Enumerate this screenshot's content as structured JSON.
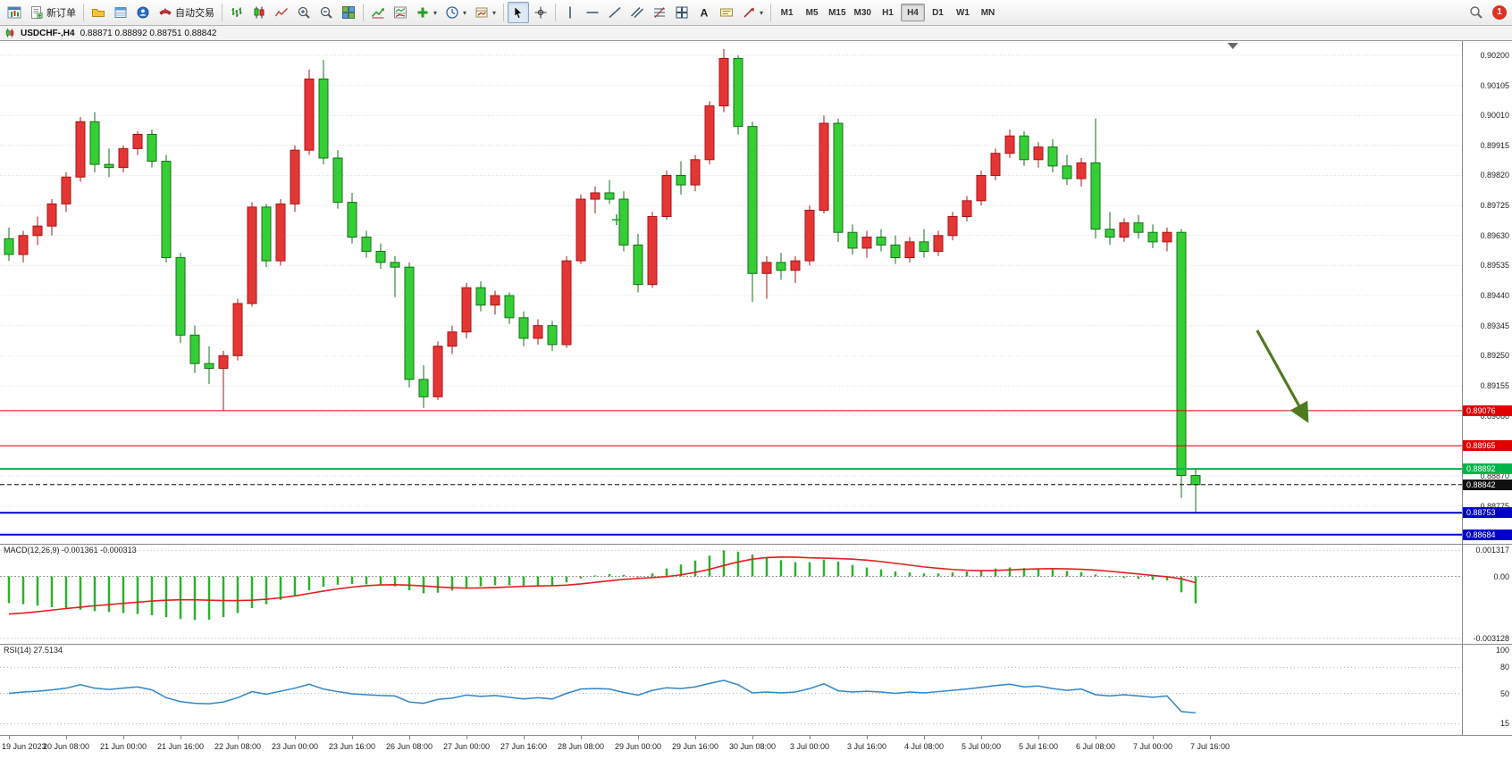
{
  "toolbar": {
    "new_order_label": "新订单",
    "autotrading_label": "自动交易",
    "timeframes": [
      "M1",
      "M5",
      "M15",
      "M30",
      "H1",
      "H4",
      "D1",
      "W1",
      "MN"
    ],
    "active_timeframe": "H4",
    "notification_count": "1",
    "icons": [
      "new-chart-icon",
      "new-order-icon",
      "profiles-icon",
      "market-watch-icon",
      "community-icon",
      "autotrading-icon",
      "bar-chart-icon",
      "candlestick-icon",
      "line-chart-icon",
      "zoom-in-icon",
      "zoom-out-icon",
      "tile-windows-icon",
      "indicators-icon",
      "indicator-window-icon",
      "add-indicator-icon",
      "periods-icon",
      "templates-icon",
      "cursor-icon",
      "crosshair-icon",
      "vertical-line-icon",
      "horizontal-line-icon",
      "trendline-icon",
      "channel-icon",
      "fibonacci-icon",
      "shapes-icon",
      "text-icon",
      "text-label-icon",
      "arrows-icon",
      "search-icon"
    ]
  },
  "chart": {
    "symbol_period": "USDCHF-,H4",
    "ohlc_text": "0.88871 0.88892 0.88751 0.88842"
  },
  "chart_data": {
    "type": "candlestick",
    "symbol": "USDCHF",
    "timeframe": "H4",
    "current_bar": {
      "open": 0.88871,
      "high": 0.88892,
      "low": 0.88751,
      "close": 0.88842
    },
    "colors": {
      "up": "#e53636",
      "up_border": "#a81414",
      "down": "#35cf35",
      "down_border": "#13711a"
    },
    "y_range": {
      "max": 0.90245,
      "min": 0.88655
    },
    "y_axis_labels": [
      "0.90200",
      "0.90105",
      "0.90010",
      "0.89915",
      "0.89820",
      "0.89725",
      "0.89630",
      "0.89535",
      "0.89440",
      "0.89345",
      "0.89250",
      "0.89155",
      "0.89060",
      "0.88965",
      "0.88870",
      "0.88775",
      "0.88684"
    ],
    "x_labels": [
      "19 Jun 2023",
      "20 Jun 08:00",
      "21 Jun 00:00",
      "21 Jun 16:00",
      "22 Jun 08:00",
      "23 Jun 00:00",
      "23 Jun 16:00",
      "26 Jun 08:00",
      "27 Jun 00:00",
      "27 Jun 16:00",
      "28 Jun 08:00",
      "29 Jun 00:00",
      "29 Jun 16:00",
      "30 Jun 08:00",
      "3 Jul 00:00",
      "3 Jul 16:00",
      "4 Jul 08:00",
      "5 Jul 00:00",
      "5 Jul 16:00",
      "6 Jul 08:00",
      "7 Jul 00:00",
      "7 Jul 16:00"
    ],
    "x_label_every": 4,
    "candles": [
      [
        0.8962,
        0.89655,
        0.8955,
        0.8957
      ],
      [
        0.8957,
        0.89645,
        0.89545,
        0.8963
      ],
      [
        0.8963,
        0.8969,
        0.896,
        0.8966
      ],
      [
        0.8966,
        0.89745,
        0.8963,
        0.8973
      ],
      [
        0.8973,
        0.8983,
        0.89705,
        0.89815
      ],
      [
        0.89815,
        0.90005,
        0.898,
        0.8999
      ],
      [
        0.8999,
        0.9002,
        0.8983,
        0.89855
      ],
      [
        0.89855,
        0.89905,
        0.89815,
        0.89845
      ],
      [
        0.89845,
        0.89915,
        0.8983,
        0.89905
      ],
      [
        0.89905,
        0.8996,
        0.89885,
        0.8995
      ],
      [
        0.8995,
        0.89965,
        0.89845,
        0.89865
      ],
      [
        0.89865,
        0.89885,
        0.89545,
        0.8956
      ],
      [
        0.8956,
        0.89575,
        0.8929,
        0.89315
      ],
      [
        0.89315,
        0.89345,
        0.89195,
        0.89225
      ],
      [
        0.89225,
        0.8928,
        0.8916,
        0.8921
      ],
      [
        0.8921,
        0.89265,
        0.89076,
        0.8925
      ],
      [
        0.8925,
        0.8943,
        0.89235,
        0.89415
      ],
      [
        0.89415,
        0.89735,
        0.89405,
        0.8972
      ],
      [
        0.8972,
        0.8973,
        0.8953,
        0.8955
      ],
      [
        0.8955,
        0.89745,
        0.89535,
        0.8973
      ],
      [
        0.8973,
        0.89915,
        0.89705,
        0.899
      ],
      [
        0.899,
        0.90155,
        0.89885,
        0.90125
      ],
      [
        0.90125,
        0.90185,
        0.89855,
        0.89875
      ],
      [
        0.89875,
        0.899,
        0.89715,
        0.89735
      ],
      [
        0.89735,
        0.89765,
        0.89605,
        0.89625
      ],
      [
        0.89625,
        0.89645,
        0.8956,
        0.8958
      ],
      [
        0.8958,
        0.89605,
        0.89525,
        0.89545
      ],
      [
        0.89545,
        0.89565,
        0.89435,
        0.8953
      ],
      [
        0.8953,
        0.89545,
        0.8915,
        0.89175
      ],
      [
        0.89175,
        0.8922,
        0.89085,
        0.8912
      ],
      [
        0.8912,
        0.89295,
        0.8911,
        0.8928
      ],
      [
        0.8928,
        0.89345,
        0.89255,
        0.89325
      ],
      [
        0.89325,
        0.8948,
        0.89305,
        0.89465
      ],
      [
        0.89465,
        0.89485,
        0.8939,
        0.8941
      ],
      [
        0.8941,
        0.89455,
        0.8938,
        0.8944
      ],
      [
        0.8944,
        0.8945,
        0.8935,
        0.8937
      ],
      [
        0.8937,
        0.8939,
        0.8928,
        0.89305
      ],
      [
        0.89305,
        0.89365,
        0.89285,
        0.89345
      ],
      [
        0.89345,
        0.8936,
        0.89265,
        0.89285
      ],
      [
        0.89285,
        0.89565,
        0.89275,
        0.8955
      ],
      [
        0.8955,
        0.8976,
        0.8954,
        0.89745
      ],
      [
        0.89745,
        0.89785,
        0.897,
        0.89765
      ],
      [
        0.89765,
        0.89805,
        0.8973,
        0.89745
      ],
      [
        0.89745,
        0.8977,
        0.8958,
        0.896
      ],
      [
        0.896,
        0.89635,
        0.8945,
        0.89475
      ],
      [
        0.89475,
        0.89705,
        0.89465,
        0.8969
      ],
      [
        0.8969,
        0.89835,
        0.8968,
        0.8982
      ],
      [
        0.8982,
        0.89865,
        0.8976,
        0.8979
      ],
      [
        0.8979,
        0.89885,
        0.8977,
        0.8987
      ],
      [
        0.8987,
        0.90055,
        0.89855,
        0.9004
      ],
      [
        0.9004,
        0.9022,
        0.9002,
        0.9019
      ],
      [
        0.9019,
        0.902,
        0.8995,
        0.89975
      ],
      [
        0.89975,
        0.8999,
        0.8942,
        0.8951
      ],
      [
        0.8951,
        0.89565,
        0.8943,
        0.89545
      ],
      [
        0.89545,
        0.89575,
        0.8949,
        0.8952
      ],
      [
        0.8952,
        0.89565,
        0.8948,
        0.8955
      ],
      [
        0.8955,
        0.89725,
        0.89535,
        0.8971
      ],
      [
        0.8971,
        0.9001,
        0.897,
        0.89985
      ],
      [
        0.89985,
        0.9,
        0.8961,
        0.8964
      ],
      [
        0.8964,
        0.89665,
        0.8957,
        0.8959
      ],
      [
        0.8959,
        0.89645,
        0.8956,
        0.89625
      ],
      [
        0.89625,
        0.8965,
        0.8958,
        0.896
      ],
      [
        0.896,
        0.8963,
        0.8954,
        0.8956
      ],
      [
        0.8956,
        0.89625,
        0.89545,
        0.8961
      ],
      [
        0.8961,
        0.8965,
        0.8956,
        0.8958
      ],
      [
        0.8958,
        0.89645,
        0.89565,
        0.8963
      ],
      [
        0.8963,
        0.89705,
        0.89615,
        0.8969
      ],
      [
        0.8969,
        0.89755,
        0.89675,
        0.8974
      ],
      [
        0.8974,
        0.89835,
        0.89725,
        0.8982
      ],
      [
        0.8982,
        0.89905,
        0.89805,
        0.8989
      ],
      [
        0.8989,
        0.89965,
        0.89875,
        0.89945
      ],
      [
        0.89945,
        0.8996,
        0.8985,
        0.8987
      ],
      [
        0.8987,
        0.89925,
        0.89845,
        0.8991
      ],
      [
        0.8991,
        0.89935,
        0.8983,
        0.8985
      ],
      [
        0.8985,
        0.89885,
        0.8979,
        0.8981
      ],
      [
        0.8981,
        0.89875,
        0.89785,
        0.8986
      ],
      [
        0.8986,
        0.9,
        0.8962,
        0.8965
      ],
      [
        0.8965,
        0.89705,
        0.896,
        0.89625
      ],
      [
        0.89625,
        0.89685,
        0.8961,
        0.8967
      ],
      [
        0.8967,
        0.89695,
        0.8962,
        0.8964
      ],
      [
        0.8964,
        0.89665,
        0.8959,
        0.8961
      ],
      [
        0.8961,
        0.89655,
        0.8958,
        0.8964
      ],
      [
        0.8964,
        0.8965,
        0.888,
        0.88871
      ],
      [
        0.88871,
        0.88892,
        0.88751,
        0.88842
      ]
    ],
    "lines": [
      {
        "price": 0.89076,
        "label": "0.89076",
        "color": "#e00000",
        "style": "solid",
        "width": 1
      },
      {
        "price": 0.88965,
        "label": "0.88965",
        "color": "#e00000",
        "style": "solid",
        "width": 1
      },
      {
        "price": 0.88892,
        "label": "0.88892",
        "color": "#00b44c",
        "style": "solid",
        "width": 2
      },
      {
        "price": 0.88842,
        "label": "0.88842",
        "color": "#111111",
        "style": "dash",
        "width": 1
      },
      {
        "price": 0.88753,
        "label": "0.88753",
        "color": "#0000cc",
        "style": "solid",
        "width": 2
      },
      {
        "price": 0.88684,
        "label": "0.88684",
        "color": "#0000cc",
        "style": "solid",
        "width": 2
      }
    ],
    "arrow_annotation": {
      "from_slot": 87.3,
      "from_price": 0.8933,
      "to_slot": 90.8,
      "to_price": 0.89045,
      "color": "#507a1e"
    },
    "cross_marker": {
      "slot": 42.5,
      "price": 0.8968,
      "color": "#2e9e2e"
    },
    "shift_marker_slot": 85.6,
    "macd": {
      "label": "MACD(12,26,9)",
      "values_text": "-0.001361 -0.000313",
      "axis_labels": [
        "0.001317",
        "0.00",
        "-0.003128"
      ],
      "axis_levels": [
        0.001317,
        0,
        -0.003128
      ],
      "range": {
        "max": 0.0016,
        "min": -0.0034
      },
      "histogram_color": "#2db12d",
      "signal_color": "#e02020",
      "histogram": [
        -0.00135,
        -0.0014,
        -0.00148,
        -0.00155,
        -0.0016,
        -0.00168,
        -0.00175,
        -0.0018,
        -0.00185,
        -0.0019,
        -0.00196,
        -0.00205,
        -0.00215,
        -0.0022,
        -0.00218,
        -0.00205,
        -0.00185,
        -0.0016,
        -0.0014,
        -0.00118,
        -0.00095,
        -0.0007,
        -0.00052,
        -0.00042,
        -0.00038,
        -0.0004,
        -0.00045,
        -0.0005,
        -0.0007,
        -0.00085,
        -0.00082,
        -0.00072,
        -0.00058,
        -0.0005,
        -0.00045,
        -0.00045,
        -0.0005,
        -0.00048,
        -0.00045,
        -0.0003,
        -0.0001,
        5e-05,
        0.00012,
        8e-05,
        -2e-05,
        0.00015,
        0.0004,
        0.0006,
        0.0008,
        0.00105,
        0.001317,
        0.00125,
        0.0011,
        0.00095,
        0.00082,
        0.00072,
        0.00072,
        0.00085,
        0.00075,
        0.00058,
        0.00045,
        0.00035,
        0.00025,
        0.0002,
        0.00015,
        0.00015,
        0.0002,
        0.00025,
        0.00032,
        0.0004,
        0.00045,
        0.00042,
        0.0004,
        0.00035,
        0.00028,
        0.00022,
        0.0001,
        -2e-05,
        -8e-05,
        -0.00012,
        -0.00018,
        -0.0002,
        -0.0008,
        -0.001361
      ],
      "signal": [
        -0.0019,
        -0.00185,
        -0.00178,
        -0.0017,
        -0.00162,
        -0.00155,
        -0.00148,
        -0.00142,
        -0.00136,
        -0.0013,
        -0.00124,
        -0.0012,
        -0.00118,
        -0.00118,
        -0.0012,
        -0.00122,
        -0.00122,
        -0.0012,
        -0.00115,
        -0.00108,
        -0.00098,
        -0.00086,
        -0.00074,
        -0.00063,
        -0.00054,
        -0.00047,
        -0.00043,
        -0.00042,
        -0.00044,
        -0.00048,
        -0.00053,
        -0.00057,
        -0.00059,
        -0.00058,
        -0.00056,
        -0.00053,
        -0.0005,
        -0.00048,
        -0.00047,
        -0.00044,
        -0.00038,
        -0.0003,
        -0.00022,
        -0.00015,
        -0.0001,
        -6e-05,
        -1e-05,
        8e-05,
        0.0002,
        0.00036,
        0.00055,
        0.00073,
        0.00087,
        0.00095,
        0.00098,
        0.00097,
        0.00094,
        0.00092,
        0.0009,
        0.00087,
        0.00082,
        0.00075,
        0.00066,
        0.00057,
        0.00048,
        0.00041,
        0.00035,
        0.00031,
        0.00029,
        0.0003,
        0.00033,
        0.00036,
        0.00038,
        0.00039,
        0.00038,
        0.00036,
        0.00032,
        0.00026,
        0.00019,
        0.00012,
        5e-05,
        -2e-05,
        -0.00012,
        -0.000313
      ]
    },
    "rsi": {
      "label": "RSI(14)",
      "value_text": "27.5134",
      "line_color": "#2e86c8",
      "levels": [
        80,
        50,
        15
      ],
      "axis_labels": [
        "100",
        "80",
        "50",
        "15"
      ],
      "axis_label_values": [
        100,
        80,
        50,
        15
      ],
      "values": [
        50,
        51.5,
        52.5,
        54,
        56,
        60,
        56,
        54.5,
        56,
        57.5,
        54,
        45,
        40.5,
        38.5,
        38,
        40,
        45,
        52,
        49,
        52.5,
        56,
        60.5,
        55,
        52,
        49.5,
        48.5,
        47.5,
        47,
        40,
        38.5,
        43,
        44.5,
        48,
        46.5,
        47.5,
        45.5,
        43.5,
        45,
        43.5,
        50,
        55,
        55.5,
        55,
        51,
        48,
        53.5,
        56.5,
        55.5,
        57.5,
        61.5,
        65,
        60,
        50.5,
        51.5,
        50.5,
        51.5,
        55.5,
        61,
        53,
        51.5,
        52.5,
        51.5,
        50,
        51.5,
        50.5,
        52,
        53.5,
        55,
        57,
        59,
        60.5,
        57.5,
        58.5,
        55.5,
        53.5,
        55,
        48.5,
        47,
        48.5,
        47,
        45.5,
        47,
        29,
        27.5134
      ]
    }
  }
}
